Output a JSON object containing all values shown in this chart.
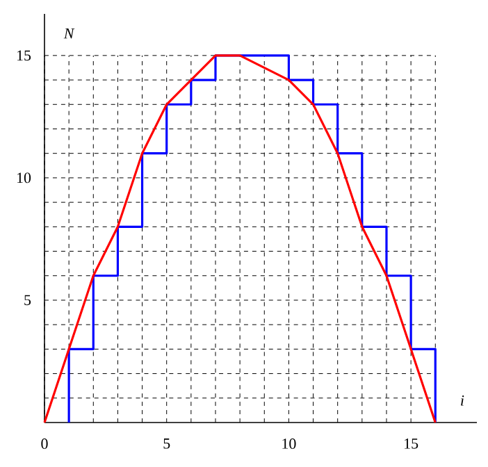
{
  "chart_data": {
    "type": "line",
    "xlabel": "i",
    "ylabel": "N",
    "xlim": [
      0,
      17.7
    ],
    "ylim": [
      0,
      16.7
    ],
    "xticks": [
      0,
      {
        "value": 1,
        "label": null
      },
      {
        "value": 2,
        "label": null
      },
      {
        "value": 3,
        "label": null
      },
      {
        "value": 4,
        "label": null
      },
      5,
      {
        "value": 6,
        "label": null
      },
      {
        "value": 7,
        "label": null
      },
      {
        "value": 8,
        "label": null
      },
      {
        "value": 9,
        "label": null
      },
      10,
      {
        "value": 11,
        "label": null
      },
      {
        "value": 12,
        "label": null
      },
      {
        "value": 13,
        "label": null
      },
      {
        "value": 14,
        "label": null
      },
      15,
      {
        "value": 16,
        "label": null
      }
    ],
    "yticks": [
      {
        "value": 1,
        "label": null
      },
      {
        "value": 2,
        "label": null
      },
      {
        "value": 3,
        "label": null
      },
      {
        "value": 4,
        "label": null
      },
      5,
      {
        "value": 6,
        "label": null
      },
      {
        "value": 7,
        "label": null
      },
      {
        "value": 8,
        "label": null
      },
      {
        "value": 9,
        "label": null
      },
      10,
      {
        "value": 11,
        "label": null
      },
      {
        "value": 12,
        "label": null
      },
      {
        "value": 13,
        "label": null
      },
      {
        "value": 14,
        "label": null
      },
      15
    ],
    "grid": true,
    "marker": "none",
    "series": [
      {
        "type": "step",
        "color": "#0000ff",
        "x": [
          1,
          1,
          2,
          3,
          4,
          5,
          6,
          7,
          8,
          9,
          10,
          11,
          12,
          13,
          14,
          15,
          16
        ],
        "values": [
          0,
          3,
          6,
          8,
          11,
          13,
          14,
          15,
          15,
          15,
          14,
          13,
          11,
          8,
          6,
          3,
          0
        ]
      },
      {
        "color": "#ff0000",
        "x": [
          0,
          1,
          2,
          3,
          4,
          5,
          6,
          7,
          8,
          10,
          11,
          12,
          13,
          14,
          15,
          16
        ],
        "values": [
          0,
          3,
          6,
          8,
          11,
          13,
          14,
          15,
          15,
          14,
          13,
          11,
          8,
          6,
          3,
          0
        ]
      }
    ]
  }
}
